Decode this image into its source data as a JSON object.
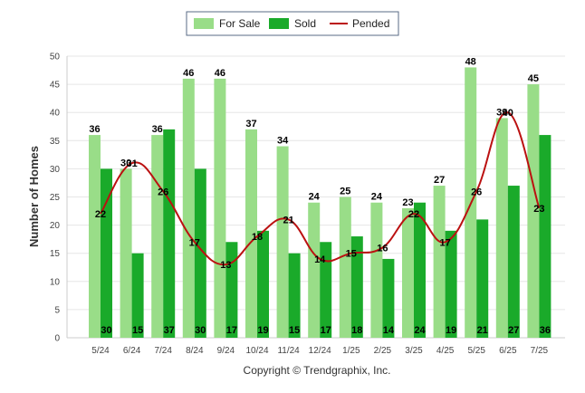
{
  "chart_data": {
    "type": "bar",
    "title": "",
    "xlabel": "",
    "ylabel": "Number of Homes",
    "ylim": [
      0,
      50
    ],
    "yticks": [
      0,
      5,
      10,
      15,
      20,
      25,
      30,
      35,
      40,
      45,
      50
    ],
    "grid": true,
    "legend_position": "top-center",
    "categories": [
      "5/24",
      "6/24",
      "7/24",
      "8/24",
      "9/24",
      "10/24",
      "11/24",
      "12/24",
      "1/25",
      "2/25",
      "3/25",
      "4/25",
      "5/25",
      "6/25",
      "7/25"
    ],
    "series": [
      {
        "name": "For Sale",
        "type": "bar",
        "color": "#99dd88",
        "values": [
          36,
          30,
          36,
          46,
          46,
          37,
          34,
          24,
          25,
          24,
          23,
          27,
          48,
          39,
          45
        ]
      },
      {
        "name": "Sold",
        "type": "bar",
        "color": "#1aaa2a",
        "values": [
          30,
          15,
          37,
          30,
          17,
          19,
          15,
          17,
          18,
          14,
          24,
          19,
          21,
          27,
          36
        ]
      },
      {
        "name": "Pended",
        "type": "line",
        "color": "#bb1111",
        "values": [
          22,
          31,
          26,
          17,
          13,
          18,
          21,
          14,
          15,
          16,
          22,
          17,
          26,
          40,
          23
        ]
      }
    ]
  },
  "footer": "Copyright © Trendgraphix, Inc."
}
